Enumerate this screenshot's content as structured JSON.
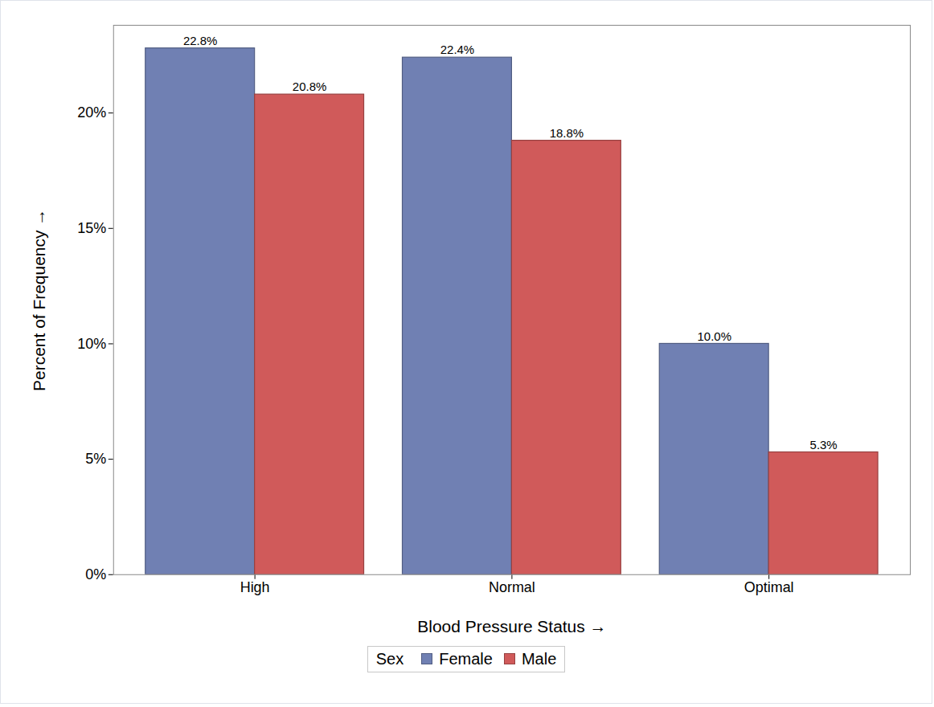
{
  "chart_data": {
    "type": "bar",
    "x_label": "Blood Pressure Status",
    "y_label": "Percent of Frequency",
    "legend_title": "Sex",
    "categories": [
      "High",
      "Normal",
      "Optimal"
    ],
    "series": [
      {
        "name": "Female",
        "color": "#7080b3",
        "values": [
          22.8,
          22.4,
          10.0
        ],
        "value_labels": [
          "22.8%",
          "22.4%",
          "10.0%"
        ]
      },
      {
        "name": "Male",
        "color": "#d05a5a",
        "values": [
          20.8,
          18.8,
          5.3
        ],
        "value_labels": [
          "20.8%",
          "18.8%",
          "5.3%"
        ]
      }
    ],
    "ylim": [
      0,
      23.8
    ],
    "yticks": [
      {
        "value": 0,
        "label": "0%"
      },
      {
        "value": 5,
        "label": "5%"
      },
      {
        "value": 10,
        "label": "10%"
      },
      {
        "value": 15,
        "label": "15%"
      },
      {
        "value": 20,
        "label": "20%"
      }
    ],
    "grid": false,
    "legend": "bottom",
    "data_labels": true
  }
}
